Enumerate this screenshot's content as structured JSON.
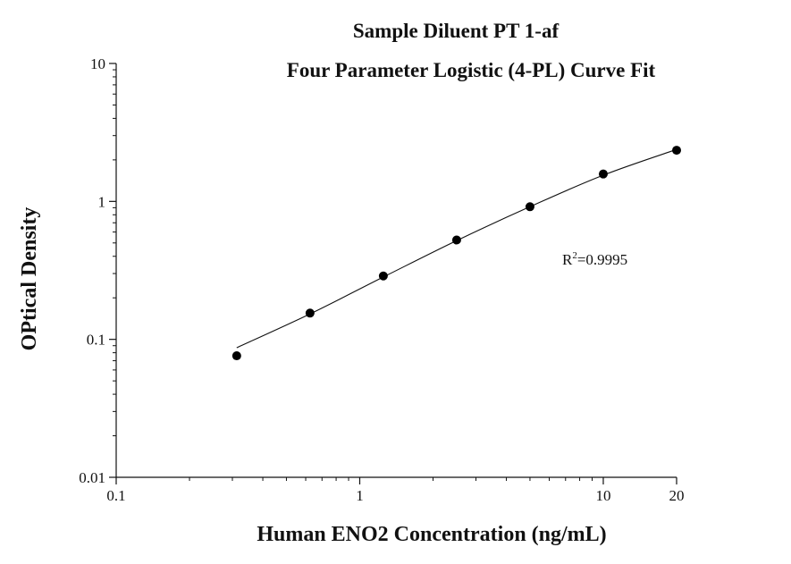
{
  "chart_data": {
    "type": "scatter",
    "title": "Sample Diluent PT 1-af",
    "subtitle": "Four Parameter Logistic (4-PL) Curve Fit",
    "xlabel": "Human ENO2 Concentration (ng/mL)",
    "ylabel": "OPtical Density",
    "xscale": "log",
    "yscale": "log",
    "xlim": [
      0.1,
      20
    ],
    "ylim": [
      0.01,
      10
    ],
    "x_ticks": [
      "0.1",
      "1",
      "10",
      "20"
    ],
    "y_ticks": [
      "0.01",
      "0.1",
      "1",
      "10"
    ],
    "grid": false,
    "annotation_base": "R",
    "annotation_sup": "2",
    "annotation_value": "=0.9995",
    "points": [
      {
        "x": 0.3125,
        "y": 0.076
      },
      {
        "x": 0.625,
        "y": 0.155
      },
      {
        "x": 1.25,
        "y": 0.288
      },
      {
        "x": 2.5,
        "y": 0.525
      },
      {
        "x": 5,
        "y": 0.915
      },
      {
        "x": 10,
        "y": 1.58
      },
      {
        "x": 20,
        "y": 2.35
      }
    ],
    "fit_curve": [
      {
        "x": 0.3125,
        "y": 0.087
      },
      {
        "x": 0.625,
        "y": 0.153
      },
      {
        "x": 1.25,
        "y": 0.283
      },
      {
        "x": 2.5,
        "y": 0.52
      },
      {
        "x": 5,
        "y": 0.915
      },
      {
        "x": 10,
        "y": 1.55
      },
      {
        "x": 20,
        "y": 2.38
      }
    ]
  }
}
